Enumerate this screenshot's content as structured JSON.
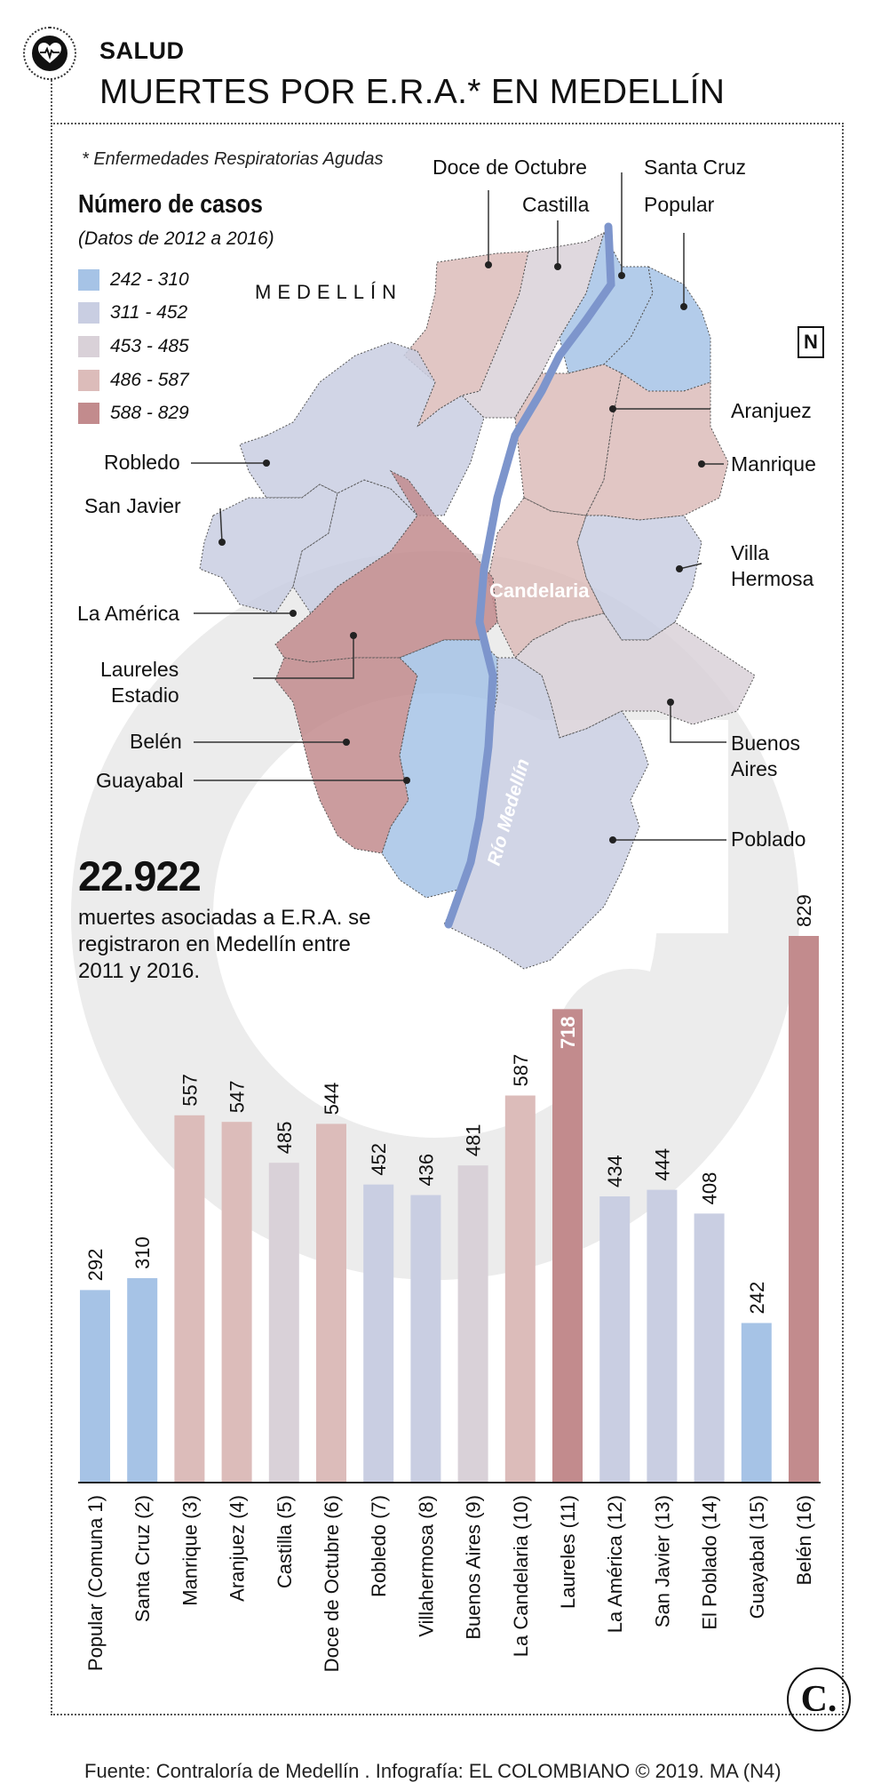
{
  "header": {
    "section": "SALUD",
    "title": "MUERTES POR E.R.A.* EN MEDELLÍN"
  },
  "footnote": "* Enfermedades Respiratorias Agudas",
  "legend": {
    "title": "Número de casos",
    "subtitle": "(Datos de 2012 a 2016)",
    "items": [
      {
        "label": "242 - 310",
        "color": "#a6c3e6"
      },
      {
        "label": "311 - 452",
        "color": "#c9cee2"
      },
      {
        "label": "453 - 485",
        "color": "#d9d1d8"
      },
      {
        "label": "486 - 587",
        "color": "#dcbcba"
      },
      {
        "label": "588 - 829",
        "color": "#c28b8d"
      }
    ]
  },
  "map": {
    "city_label": "MEDELLÍN",
    "river_label": "Río Medellín",
    "center_label": "Candelaria",
    "north_symbol": "N",
    "callouts": {
      "doce_de_octubre": "Doce de Octubre",
      "castilla": "Castilla",
      "santa_cruz": "Santa Cruz",
      "popular": "Popular",
      "aranjuez": "Aranjuez",
      "manrique": "Manrique",
      "villa_hermosa_1": "Villa",
      "villa_hermosa_2": "Hermosa",
      "robledo": "Robledo",
      "san_javier": "San Javier",
      "la_america": "La América",
      "laureles_1": "Laureles",
      "laureles_2": "Estadio",
      "belen": "Belén",
      "guayabal": "Guayabal",
      "buenos_aires_1": "Buenos",
      "buenos_aires_2": "Aires",
      "poblado": "Poblado"
    }
  },
  "summary": {
    "total": "22.922",
    "description": "muertes asociadas a E.R.A. se registraron en Medellín entre 2011 y 2016."
  },
  "chart_data": {
    "type": "bar",
    "categories": [
      "Popular (Comuna 1)",
      "Santa Cruz (2)",
      "Manrique (3)",
      "Aranjuez (4)",
      "Castilla (5)",
      "Doce de Octubre (6)",
      "Robledo (7)",
      "Villahermosa (8)",
      "Buenos Aires (9)",
      "La Candelaria (10)",
      "Laureles (11)",
      "La América (12)",
      "San Javier (13)",
      "El Poblado (14)",
      "Guayabal (15)",
      "Belén (16)"
    ],
    "values": [
      292,
      310,
      557,
      547,
      485,
      544,
      452,
      436,
      481,
      587,
      718,
      434,
      444,
      408,
      242,
      829
    ],
    "colors": [
      "#a6c3e6",
      "#a6c3e6",
      "#dcbcba",
      "#dcbcba",
      "#d9d1d8",
      "#dcbcba",
      "#c9cee2",
      "#c9cee2",
      "#d9d1d8",
      "#dcbcba",
      "#c28b8d",
      "#c9cee2",
      "#c9cee2",
      "#c9cee2",
      "#a6c3e6",
      "#c28b8d"
    ],
    "ylim": [
      0,
      829
    ]
  },
  "footer": {
    "source": "Fuente: Contraloría de Medellín . Infografía: EL COLOMBIANO © 2019. MA (N4)",
    "logo_text": "C."
  }
}
